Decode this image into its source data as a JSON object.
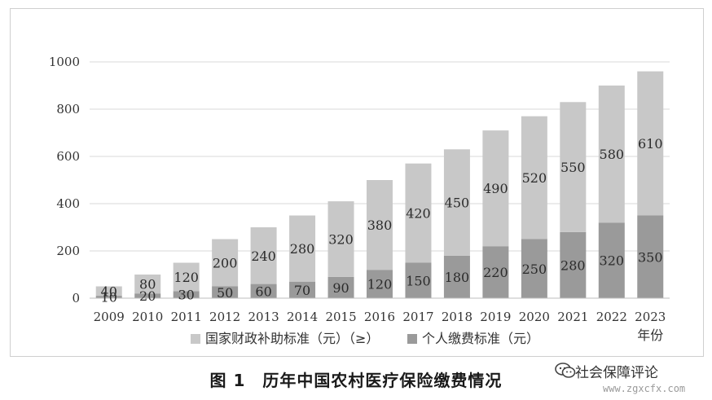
{
  "chart_data": {
    "type": "bar",
    "stacked": true,
    "categories": [
      "2009",
      "2010",
      "2011",
      "2012",
      "2013",
      "2014",
      "2015",
      "2016",
      "2017",
      "2018",
      "2019",
      "2020",
      "2021",
      "2022",
      "2023"
    ],
    "x_unit": "年份",
    "series": [
      {
        "name": "个人缴费标准（元）",
        "color": "#9a9a9a",
        "values": [
          10,
          20,
          30,
          50,
          60,
          70,
          90,
          120,
          150,
          180,
          220,
          250,
          280,
          320,
          350
        ]
      },
      {
        "name": "国家财政补助标准（元）（≥）",
        "color": "#c8c8c8",
        "values": [
          40,
          80,
          120,
          200,
          240,
          280,
          320,
          380,
          420,
          450,
          490,
          520,
          550,
          580,
          610
        ]
      }
    ],
    "legend_order": [
      1,
      0
    ],
    "y_ticks": [
      0,
      200,
      400,
      600,
      800,
      1000
    ],
    "ylim": [
      0,
      1000
    ],
    "grid": true,
    "legend_position": "bottom"
  },
  "caption": "图 1　历年中国农村医疗保险缴费情况",
  "watermark": {
    "name": "社会保障评论",
    "url": "www.zgxcfx.com",
    "icon": "wechat-icon"
  }
}
